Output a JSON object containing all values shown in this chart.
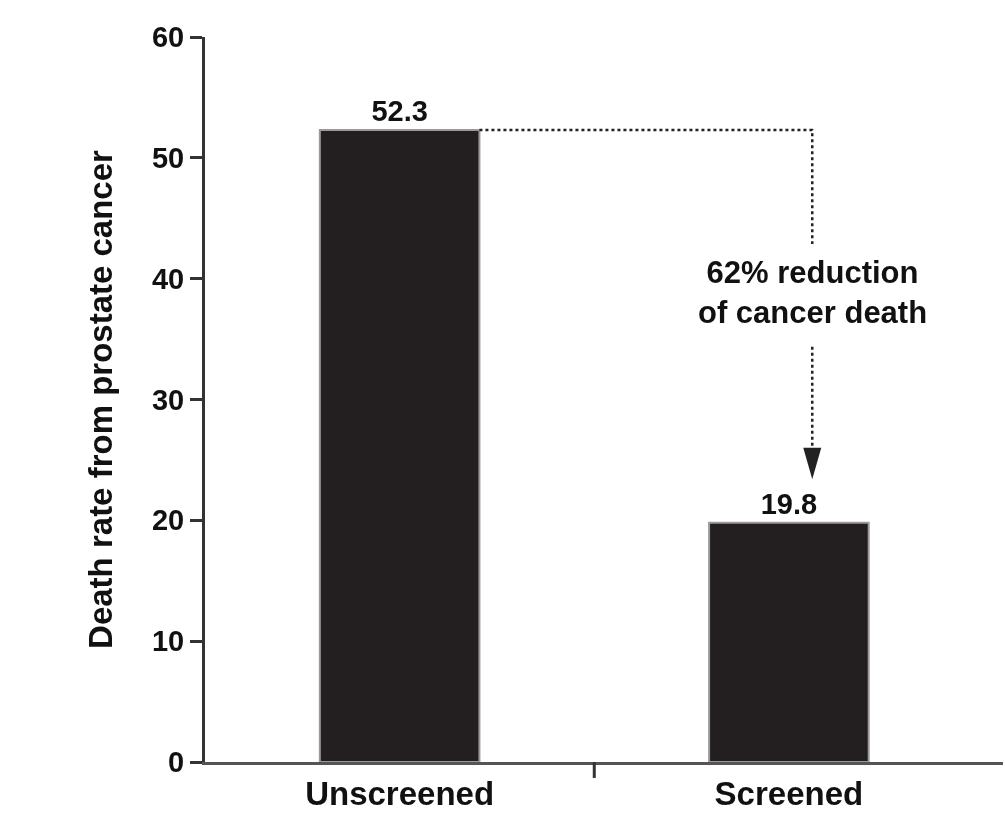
{
  "chart_data": {
    "type": "bar",
    "ylabel": "Death rate from prostate cancer",
    "categories": [
      "Unscreened",
      "Screened"
    ],
    "values": [
      52.3,
      19.8
    ],
    "color": "#231f20",
    "ylim": [
      0,
      60
    ],
    "yticks": [
      0,
      10,
      20,
      30,
      40,
      50,
      60
    ],
    "grid": false,
    "data_labels": true,
    "annotations": [
      "62% reduction\nof cancer death"
    ]
  }
}
